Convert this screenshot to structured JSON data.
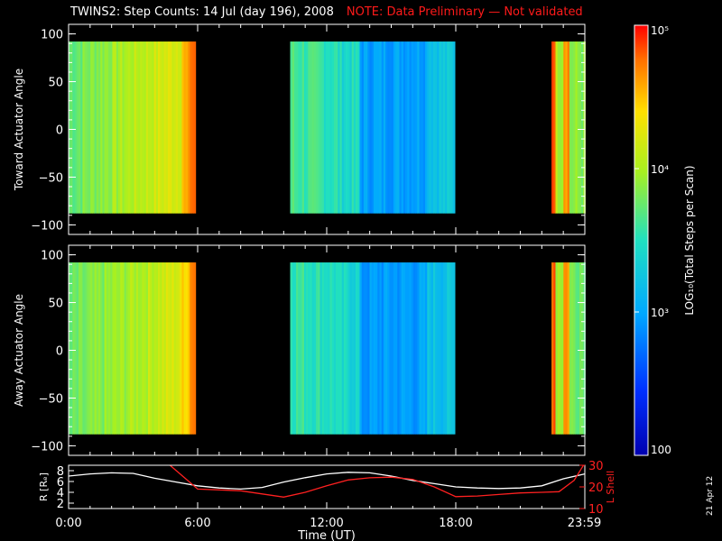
{
  "title": "TWINS2: Step Counts: 14 Jul (day 196), 2008",
  "note": "NOTE: Data Preliminary — Not validated",
  "date_stamp": "21 Apr 12",
  "chart_data": [
    {
      "type": "heatmap",
      "ylabel": "Toward Actuator Angle",
      "ylim": [
        -110,
        110
      ],
      "yticks": [
        "100",
        "50",
        "0",
        "−50",
        "−100"
      ],
      "ytick_values": [
        100,
        50,
        0,
        -50,
        -100
      ],
      "angle_range": [
        -88,
        92
      ],
      "xlim_hours": [
        0,
        24
      ],
      "data_intervals_hours": [
        [
          0.0,
          5.85
        ],
        [
          10.3,
          17.95
        ],
        [
          22.45,
          24.0
        ]
      ],
      "colorscale_log10_range": [
        2,
        5
      ]
    },
    {
      "type": "heatmap",
      "ylabel": "Away Actuator Angle",
      "ylim": [
        -110,
        110
      ],
      "yticks": [
        "100",
        "50",
        "0",
        "−50",
        "−100"
      ],
      "ytick_values": [
        100,
        50,
        0,
        -50,
        -100
      ],
      "angle_range": [
        -88,
        92
      ],
      "xlim_hours": [
        0,
        24
      ],
      "data_intervals_hours": [
        [
          0.0,
          5.85
        ],
        [
          10.3,
          17.95
        ],
        [
          22.45,
          24.0
        ]
      ],
      "colorscale_log10_range": [
        2,
        5
      ]
    },
    {
      "type": "line",
      "ylabel": "R [Rₑ]",
      "ylabel_right": "L Shell",
      "xlabel": "Time (UT)",
      "xtick_labels": [
        "0:00",
        "6:00",
        "12:00",
        "18:00",
        "23:59"
      ],
      "xtick_hours": [
        0,
        6,
        12,
        18,
        23.98
      ],
      "ylim_left": [
        1,
        9
      ],
      "yticks_left": [
        "8",
        "6",
        "4",
        "2"
      ],
      "ylim_right": [
        10,
        30
      ],
      "yticks_right": [
        "30",
        "20",
        "10"
      ],
      "series": [
        {
          "color": "#ffffff",
          "axis": "left",
          "x": [
            0,
            1,
            2,
            3,
            4,
            5,
            6,
            7,
            8,
            9,
            10,
            11,
            12,
            13,
            14,
            15,
            16,
            17,
            18,
            19,
            20,
            21,
            22,
            23,
            24
          ],
          "y": [
            7.0,
            7.4,
            7.6,
            7.5,
            6.6,
            5.9,
            5.2,
            4.8,
            4.6,
            4.9,
            5.9,
            6.7,
            7.4,
            7.7,
            7.6,
            7.0,
            6.2,
            5.6,
            5.0,
            4.8,
            4.7,
            4.8,
            5.2,
            6.5,
            7.4
          ]
        },
        {
          "color": "#ff2020",
          "axis": "right",
          "x": [
            4.6,
            6,
            8,
            10,
            11,
            12,
            13,
            14,
            15,
            16,
            17,
            18,
            19,
            20,
            21,
            22,
            22.8,
            23.5,
            24
          ],
          "y": [
            31,
            19.0,
            18.2,
            15.3,
            17.5,
            20.5,
            23.2,
            24.2,
            24.5,
            23.5,
            20.0,
            15.5,
            15.8,
            16.5,
            17.2,
            17.5,
            17.8,
            23.0,
            31
          ]
        }
      ]
    }
  ],
  "colorbar": {
    "label": "LOG₁₀(Total Steps per Scan)",
    "ticks": [
      "10⁵",
      "10⁴",
      "10³",
      "100"
    ],
    "tick_log_values": [
      5,
      4,
      3,
      2
    ]
  }
}
